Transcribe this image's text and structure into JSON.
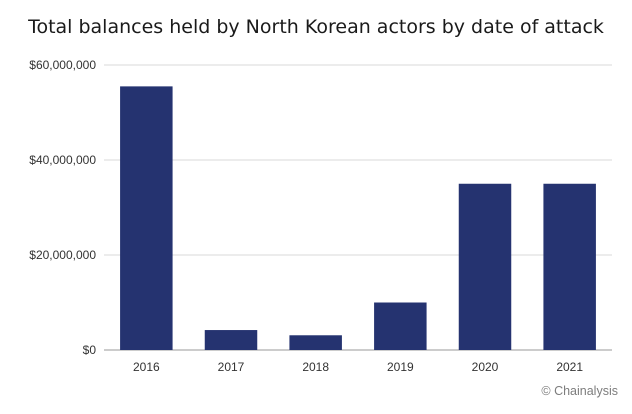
{
  "chart_data": {
    "type": "bar",
    "title": "Total balances held by North Korean actors by date of attack",
    "xlabel": "",
    "ylabel": "",
    "categories": [
      "2016",
      "2017",
      "2018",
      "2019",
      "2020",
      "2021"
    ],
    "values": [
      55500000,
      4200000,
      3100000,
      10000000,
      35000000,
      35000000
    ],
    "ylim": [
      0,
      60000000
    ],
    "yticks": [
      0,
      20000000,
      40000000,
      60000000
    ],
    "ytick_labels": [
      "$0",
      "$20,000,000",
      "$40,000,000",
      "$60,000,000"
    ],
    "grid": true,
    "bar_color": "#253370",
    "grid_color": "#d9d9d9"
  },
  "credit": "© Chainalysis"
}
